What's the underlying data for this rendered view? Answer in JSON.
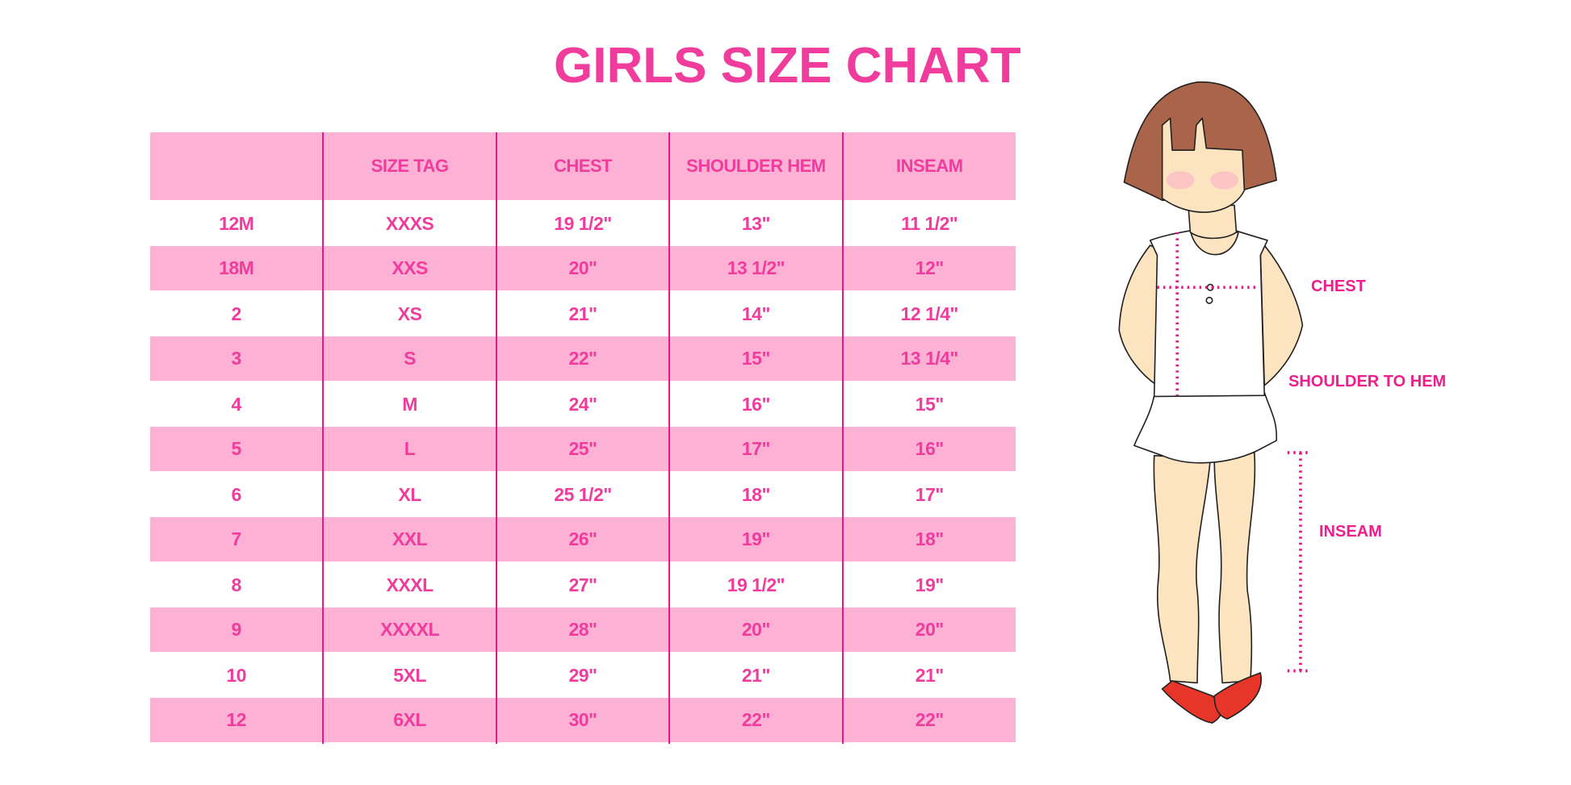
{
  "title": "GIRLS SIZE CHART",
  "colors": {
    "accent": "#f03c9c",
    "row_pink": "#fdb1d4",
    "divider": "#e8168a",
    "label": "#ee1f8d",
    "hair": "#a9644a",
    "skin": "#fde4c0",
    "shoes": "#e8352a"
  },
  "table": {
    "headers": [
      "",
      "SIZE TAG",
      "CHEST",
      "SHOULDER HEM",
      "INSEAM"
    ],
    "rows": [
      [
        "12M",
        "XXXS",
        "19 1/2\"",
        "13\"",
        "11 1/2\""
      ],
      [
        "18M",
        "XXS",
        "20\"",
        "13 1/2\"",
        "12\""
      ],
      [
        "2",
        "XS",
        "21\"",
        "14\"",
        "12 1/4\""
      ],
      [
        "3",
        "S",
        "22\"",
        "15\"",
        "13 1/4\""
      ],
      [
        "4",
        "M",
        "24\"",
        "16\"",
        "15\""
      ],
      [
        "5",
        "L",
        "25\"",
        "17\"",
        "16\""
      ],
      [
        "6",
        "XL",
        "25 1/2\"",
        "18\"",
        "17\""
      ],
      [
        "7",
        "XXL",
        "26\"",
        "19\"",
        "18\""
      ],
      [
        "8",
        "XXXL",
        "27\"",
        "19 1/2\"",
        "19\""
      ],
      [
        "9",
        "XXXXL",
        "28\"",
        "20\"",
        "20\""
      ],
      [
        "10",
        "5XL",
        "29\"",
        "21\"",
        "21\""
      ],
      [
        "12",
        "6XL",
        "30\"",
        "22\"",
        "22\""
      ]
    ]
  },
  "figure": {
    "icon": "girl-measurement-illustration",
    "labels": {
      "chest": "CHEST",
      "shoulder_to_hem": "SHOULDER TO HEM",
      "inseam": "INSEAM"
    }
  }
}
